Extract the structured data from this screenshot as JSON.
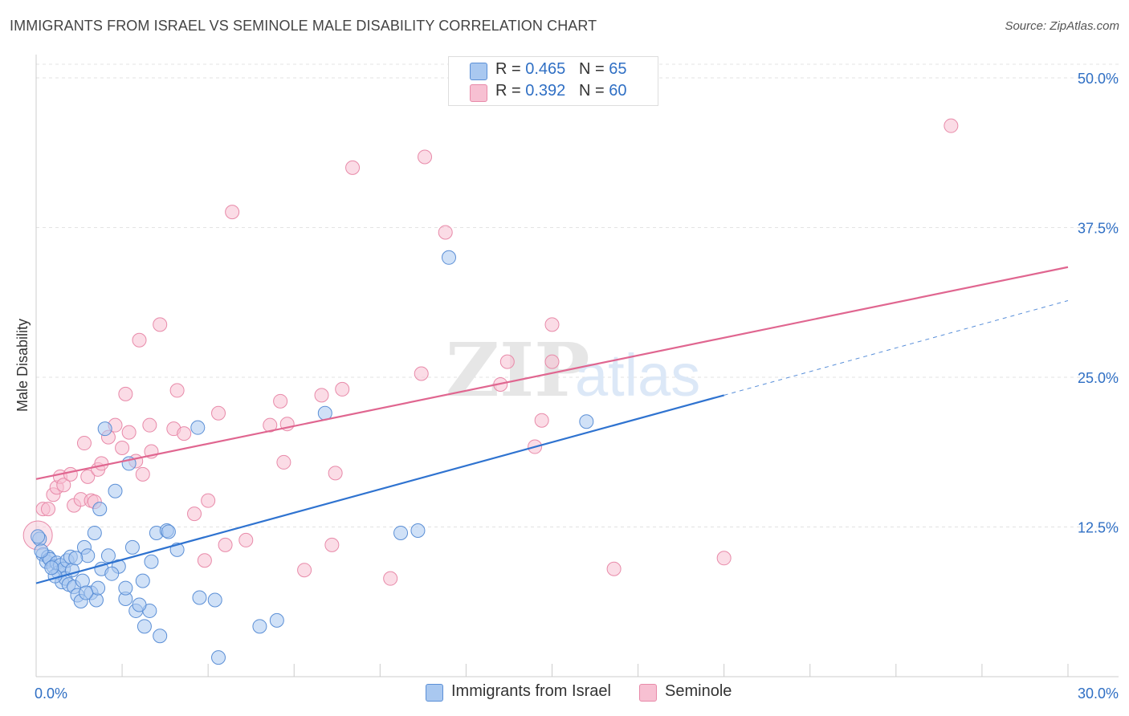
{
  "header": {
    "title": "IMMIGRANTS FROM ISRAEL VS SEMINOLE MALE DISABILITY CORRELATION CHART",
    "source": "Source: ZipAtlas.com"
  },
  "legend": {
    "rows": [
      {
        "r_label": "R = ",
        "r_value": "0.465",
        "n_label": "N = ",
        "n_value": "65"
      },
      {
        "r_label": "R = ",
        "r_value": "0.392",
        "n_label": "N = ",
        "n_value": "60"
      }
    ]
  },
  "bottom_legend": {
    "series1": "Immigrants from Israel",
    "series2": "Seminole"
  },
  "watermark": {
    "zip": "ZIP",
    "atlas": "atlas"
  },
  "colors": {
    "blue_fill": "#a9c8f0",
    "blue_stroke": "#5b8fd6",
    "blue_line": "#2f73d0",
    "pink_fill": "#f7c0d2",
    "pink_stroke": "#e88aa9",
    "pink_line": "#e06690",
    "value_text": "#2f6fc4",
    "grid": "#e3e3e3"
  },
  "chart_data": {
    "type": "scatter",
    "title": "IMMIGRANTS FROM ISRAEL VS SEMINOLE MALE DISABILITY CORRELATION CHART",
    "xlabel": "",
    "ylabel": "Male Disability",
    "xlim": [
      0,
      30
    ],
    "ylim": [
      0,
      50
    ],
    "x_tick_labels": [
      {
        "value": 0,
        "label": "0.0%"
      },
      {
        "value": 30,
        "label": "30.0%"
      }
    ],
    "y_tick_labels": [
      {
        "value": 12.5,
        "label": "12.5%"
      },
      {
        "value": 25,
        "label": "25.0%"
      },
      {
        "value": 37.5,
        "label": "37.5%"
      },
      {
        "value": 50,
        "label": "50.0%"
      }
    ],
    "series": [
      {
        "name": "Immigrants from Israel",
        "r": 0.465,
        "n": 65,
        "trend": {
          "x0": 0,
          "y0": 7.8,
          "x1": 20,
          "y1": 23.5,
          "dash_to_x": 30,
          "dash_to_y": 31.4
        },
        "points": [
          [
            0.1,
            11.5
          ],
          [
            0.2,
            10.2
          ],
          [
            0.3,
            9.6
          ],
          [
            0.35,
            10.0
          ],
          [
            0.4,
            9.8
          ],
          [
            0.5,
            9.2
          ],
          [
            0.6,
            9.5
          ],
          [
            0.65,
            8.7
          ],
          [
            0.7,
            9.3
          ],
          [
            0.75,
            7.9
          ],
          [
            0.8,
            9.0
          ],
          [
            0.85,
            8.2
          ],
          [
            0.9,
            9.7
          ],
          [
            0.95,
            7.7
          ],
          [
            1.0,
            10.0
          ],
          [
            1.05,
            8.9
          ],
          [
            1.1,
            7.5
          ],
          [
            1.2,
            6.8
          ],
          [
            1.3,
            6.3
          ],
          [
            1.35,
            8.0
          ],
          [
            1.4,
            10.8
          ],
          [
            1.5,
            10.1
          ],
          [
            1.6,
            7.0
          ],
          [
            1.7,
            12.0
          ],
          [
            1.75,
            6.4
          ],
          [
            1.8,
            7.4
          ],
          [
            1.85,
            14.0
          ],
          [
            1.9,
            9.0
          ],
          [
            2.0,
            20.7
          ],
          [
            2.1,
            10.1
          ],
          [
            2.3,
            15.5
          ],
          [
            2.4,
            9.2
          ],
          [
            2.6,
            6.5
          ],
          [
            2.6,
            7.4
          ],
          [
            2.7,
            17.8
          ],
          [
            2.8,
            10.8
          ],
          [
            2.9,
            5.5
          ],
          [
            3.1,
            8.0
          ],
          [
            3.15,
            4.2
          ],
          [
            3.3,
            5.5
          ],
          [
            3.35,
            9.6
          ],
          [
            3.5,
            12.0
          ],
          [
            3.6,
            3.4
          ],
          [
            3.8,
            12.2
          ],
          [
            3.85,
            12.1
          ],
          [
            4.1,
            10.6
          ],
          [
            4.7,
            20.8
          ],
          [
            4.75,
            6.6
          ],
          [
            5.2,
            6.4
          ],
          [
            5.3,
            1.6
          ],
          [
            6.5,
            4.2
          ],
          [
            7.0,
            4.7
          ],
          [
            8.4,
            22.0
          ],
          [
            10.6,
            12.0
          ],
          [
            11.1,
            12.2
          ],
          [
            12.0,
            35.0
          ],
          [
            16.0,
            21.3
          ],
          [
            0.05,
            11.7
          ],
          [
            0.15,
            10.5
          ],
          [
            0.55,
            8.4
          ],
          [
            1.15,
            9.9
          ],
          [
            2.2,
            8.6
          ],
          [
            1.45,
            7.0
          ],
          [
            0.45,
            9.1
          ],
          [
            3.0,
            6.0
          ]
        ]
      },
      {
        "name": "Seminole",
        "r": 0.392,
        "n": 60,
        "trend": {
          "x0": 0,
          "y0": 16.5,
          "x1": 30,
          "y1": 34.2
        },
        "points": [
          [
            0.2,
            14.0
          ],
          [
            0.35,
            14.0
          ],
          [
            0.5,
            15.2
          ],
          [
            0.6,
            15.8
          ],
          [
            0.7,
            16.7
          ],
          [
            0.8,
            16.0
          ],
          [
            1.0,
            16.9
          ],
          [
            1.1,
            14.3
          ],
          [
            1.3,
            14.8
          ],
          [
            1.4,
            19.5
          ],
          [
            1.5,
            16.7
          ],
          [
            1.6,
            14.7
          ],
          [
            1.7,
            14.6
          ],
          [
            1.8,
            17.3
          ],
          [
            1.9,
            17.8
          ],
          [
            2.1,
            20.0
          ],
          [
            2.3,
            21.0
          ],
          [
            2.5,
            19.1
          ],
          [
            2.6,
            23.6
          ],
          [
            2.7,
            20.4
          ],
          [
            2.9,
            18.0
          ],
          [
            3.0,
            28.1
          ],
          [
            3.1,
            16.9
          ],
          [
            3.3,
            21.0
          ],
          [
            3.35,
            18.8
          ],
          [
            3.6,
            29.4
          ],
          [
            4.0,
            20.7
          ],
          [
            4.1,
            23.9
          ],
          [
            4.3,
            20.3
          ],
          [
            4.6,
            13.6
          ],
          [
            4.9,
            9.7
          ],
          [
            5.0,
            14.7
          ],
          [
            5.3,
            22.0
          ],
          [
            5.5,
            11.0
          ],
          [
            5.7,
            38.8
          ],
          [
            6.1,
            11.4
          ],
          [
            6.8,
            21.0
          ],
          [
            7.1,
            23.0
          ],
          [
            7.2,
            17.9
          ],
          [
            7.3,
            21.1
          ],
          [
            7.8,
            8.9
          ],
          [
            8.3,
            23.5
          ],
          [
            8.6,
            11.0
          ],
          [
            8.7,
            17.0
          ],
          [
            8.9,
            24.0
          ],
          [
            9.2,
            42.5
          ],
          [
            10.3,
            8.2
          ],
          [
            11.2,
            25.3
          ],
          [
            11.3,
            43.4
          ],
          [
            11.9,
            37.1
          ],
          [
            13.5,
            24.4
          ],
          [
            13.7,
            26.3
          ],
          [
            14.5,
            19.2
          ],
          [
            14.7,
            21.4
          ],
          [
            15.0,
            29.4
          ],
          [
            15.0,
            26.3
          ],
          [
            16.8,
            9.0
          ],
          [
            20.0,
            9.9
          ],
          [
            26.6,
            46.0
          ],
          [
            0.05,
            11.8
          ]
        ]
      }
    ]
  }
}
